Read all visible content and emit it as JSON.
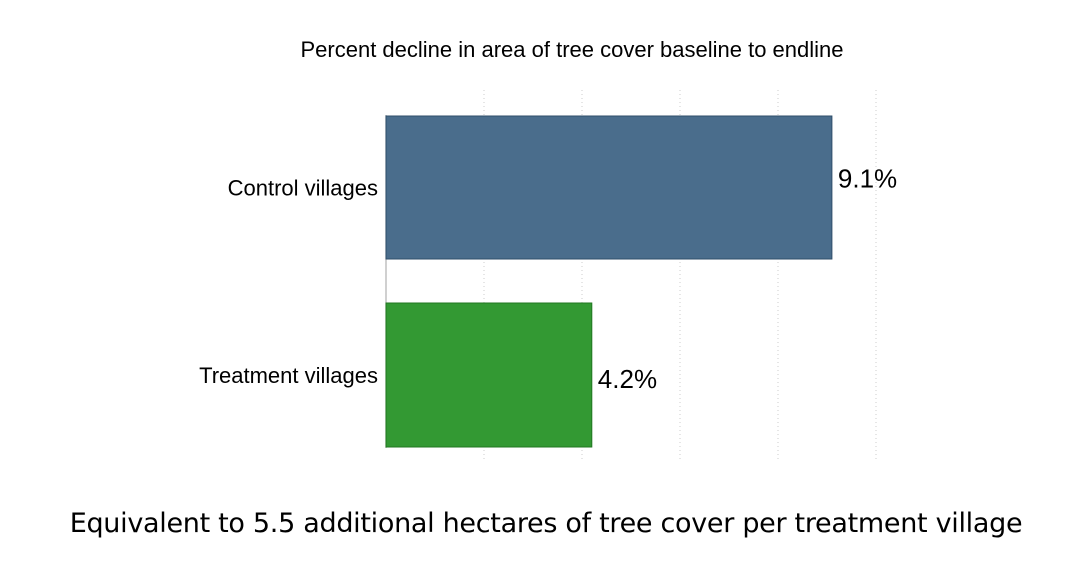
{
  "chart_data": {
    "type": "bar",
    "orientation": "horizontal",
    "title": "Percent decline in area of tree cover baseline to endline",
    "categories": [
      "Control villages",
      "Treatment villages"
    ],
    "values": [
      9.1,
      4.2
    ],
    "value_labels": [
      "9.1%",
      "4.2%"
    ],
    "colors": [
      "#4a6d8c",
      "#339933"
    ],
    "xlim": [
      0,
      10
    ],
    "grid": "vertical-dotted",
    "xlabel": "",
    "ylabel": ""
  },
  "footnote": "Equivalent to 5.5 additional hectares of tree cover per treatment village"
}
